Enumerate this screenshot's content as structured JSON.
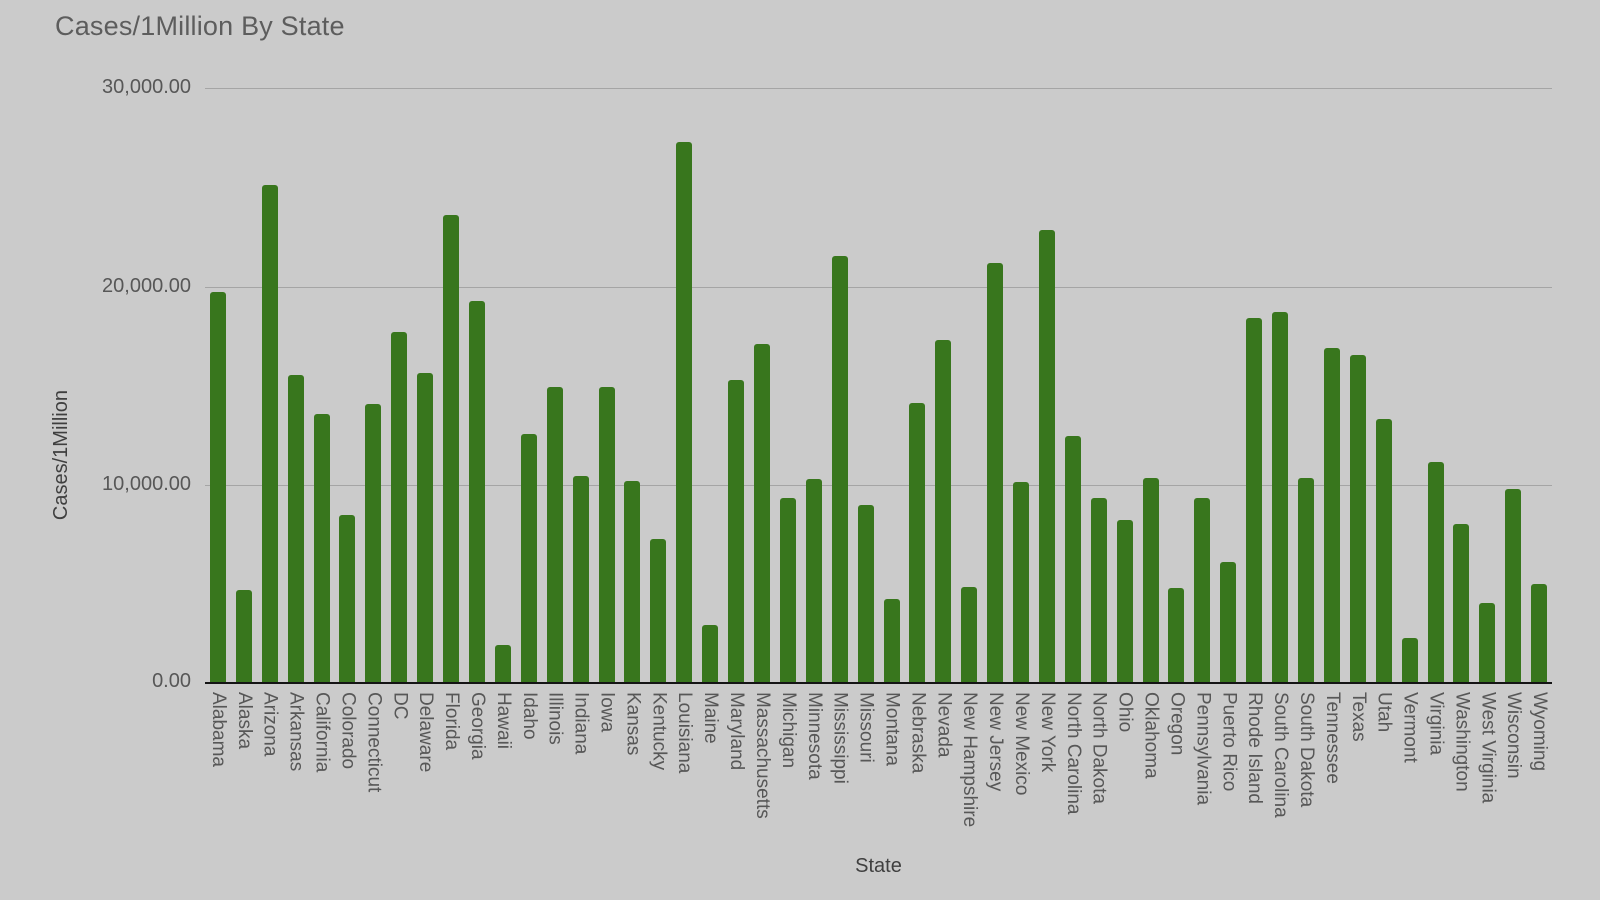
{
  "title": "Cases/1Million By State",
  "axes": {
    "y_title": "Cases/1Million",
    "x_title": "State",
    "y_ticks": [
      "30,000.00",
      "20,000.00",
      "10,000.00",
      "0.00"
    ]
  },
  "colors": {
    "background": "#cbcbcb",
    "bar": "#38761d",
    "gridline": "#a5a5a5",
    "axis_line": "#141414",
    "title_text": "#5d5d5d",
    "tick_text": "#575757",
    "axis_title_text": "#3f3f3f"
  },
  "chart_data": {
    "type": "bar",
    "title": "Cases/1Million By State",
    "xlabel": "State",
    "ylabel": "Cases/1Million",
    "ylim": [
      0,
      30000
    ],
    "grid": "horizontal",
    "legend": "none",
    "bar_color": "#38761d",
    "categories": [
      "Alabama",
      "Alaska",
      "Arizona",
      "Arkansas",
      "California",
      "Colorado",
      "Connecticut",
      "DC",
      "Delaware",
      "Florida",
      "Georgia",
      "Hawaii",
      "Idaho",
      "Illinois",
      "Indiana",
      "Iowa",
      "Kansas",
      "Kentucky",
      "Louisiana",
      "Maine",
      "Maryland",
      "Massachusetts",
      "Michigan",
      "Minnesota",
      "Mississippi",
      "Missouri",
      "Montana",
      "Nebraska",
      "Nevada",
      "New Hampshire",
      "New Jersey",
      "New Mexico",
      "New York",
      "North Carolina",
      "North Dakota",
      "Ohio",
      "Oklahoma",
      "Oregon",
      "Pennsylvania",
      "Puerto Rico",
      "Rhode Island",
      "South Carolina",
      "South Dakota",
      "Tennessee",
      "Texas",
      "Utah",
      "Vermont",
      "Virginia",
      "Washington",
      "West Virginia",
      "Wisconsin",
      "Wyoming"
    ],
    "values": [
      19700,
      4700,
      25100,
      15520,
      13550,
      8460,
      14050,
      17700,
      15650,
      23600,
      19270,
      1920,
      12580,
      14930,
      10440,
      14950,
      10180,
      7280,
      27280,
      2940,
      15270,
      17100,
      9350,
      10280,
      21550,
      9000,
      4230,
      14120,
      17300,
      4820,
      21190,
      10150,
      22850,
      12430,
      9350,
      8220,
      10360,
      4770,
      9350,
      6120,
      18420,
      18720,
      10360,
      16900,
      16550,
      13310,
      2250,
      11160,
      8000,
      4030,
      9800,
      5000
    ]
  }
}
